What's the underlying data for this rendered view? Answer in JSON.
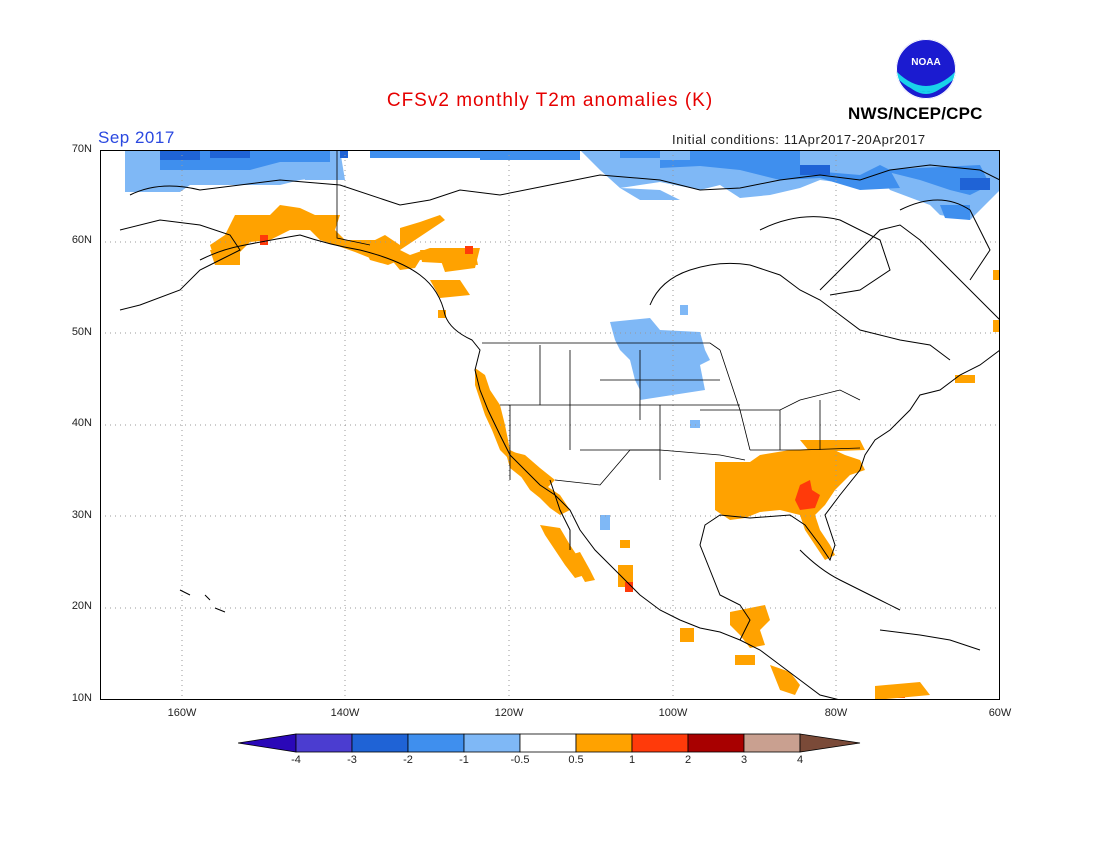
{
  "title": "CFSv2 monthly T2m anomalies (K)",
  "month": "Sep 2017",
  "initial_conditions": "Initial conditions: 11Apr2017-20Apr2017",
  "agency": "NWS/NCEP/CPC",
  "logo_text": "NOAA",
  "map": {
    "lon_range": [
      -170,
      -60
    ],
    "lat_range": [
      10,
      70
    ],
    "lat_labels": [
      "70N",
      "60N",
      "50N",
      "40N",
      "30N",
      "20N",
      "10N"
    ],
    "lon_labels": [
      "160W",
      "140W",
      "120W",
      "100W",
      "80W",
      "60W"
    ],
    "grid": "dotted"
  },
  "colorbar": {
    "labels": [
      "-4",
      "-3",
      "-2",
      "-1",
      "-0.5",
      "0.5",
      "1",
      "2",
      "3",
      "4"
    ],
    "colors": [
      "#2a08b8",
      "#4b3dd0",
      "#1f63d6",
      "#3f8fee",
      "#7fb8f6",
      "#ffffff",
      "#ffa200",
      "#ff3a0a",
      "#a80000",
      "#c9a090",
      "#7a4a38"
    ]
  },
  "anomaly_regions": [
    {
      "name": "alaska-coast",
      "level": 0.5
    },
    {
      "name": "pacific-coast",
      "level": 0.5
    },
    {
      "name": "southeast-us",
      "level": 0.5
    },
    {
      "name": "georgia-core",
      "level": 1
    },
    {
      "name": "central-america",
      "level": 0.5
    },
    {
      "name": "northern-plains",
      "level": -0.5
    },
    {
      "name": "arctic-coast",
      "level": -1
    }
  ]
}
